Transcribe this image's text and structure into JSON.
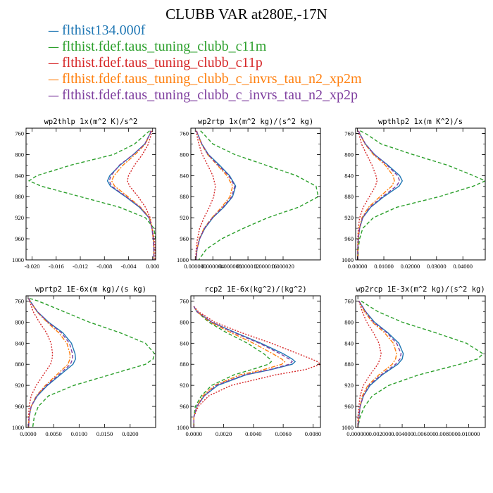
{
  "header": {
    "title": "CLUBB VAR at280E,-17N"
  },
  "chart_data": {
    "series_legend": [
      {
        "name": "flthist134.000f",
        "color": "#1f77b4",
        "dash": "solid"
      },
      {
        "name": "flthist.fdef.taus_tuning_clubb_c11m",
        "color": "#2ca02c",
        "dash": "dashed"
      },
      {
        "name": "flthist.fdef.taus_tuning_clubb_c11p",
        "color": "#d62728",
        "dash": "dotted"
      },
      {
        "name": "flthist.fdef.taus_tuning_clubb_c_invrs_tau_n2_xp2m",
        "color": "#ff7f0e",
        "dash": "dashdot"
      },
      {
        "name": "flthist.fdef.taus_tuning_clubb_c_invrs_tau_n2_xp2p",
        "color": "#7f3f9f",
        "dash": "dashed"
      }
    ],
    "plots": [
      {
        "title": "wp2thlp  1x(m^2 K)/s^2",
        "type": "line",
        "xlim": [
          -0.021,
          0.0005
        ],
        "ylim": [
          1000,
          750
        ],
        "xticks": [
          -0.02,
          -0.016,
          -0.012,
          -0.008,
          -0.004,
          0.0
        ],
        "xticklabels": [
          "-0.020",
          "-0.016",
          "-0.012",
          "-0.008",
          "-0.004",
          "0.000"
        ],
        "y": [
          755,
          760,
          780,
          800,
          820,
          840,
          850,
          860,
          880,
          900,
          920,
          940,
          960,
          980,
          1000
        ],
        "series": [
          {
            "values": [
              -0.0003,
              -0.0004,
              -0.0013,
              -0.0032,
              -0.0054,
              -0.0071,
              -0.0075,
              -0.007,
              -0.0045,
              -0.0022,
              -0.0006,
              -0.0001,
              0.0001,
              0.0002,
              0.0002
            ]
          },
          {
            "values": [
              -0.0005,
              -0.001,
              -0.003,
              -0.0065,
              -0.0135,
              -0.0192,
              -0.0205,
              -0.0185,
              -0.012,
              -0.0055,
              -0.0012,
              0.0002,
              0.0005,
              0.0006,
              0.0006
            ]
          },
          {
            "values": [
              -0.0001,
              -0.0002,
              -0.0007,
              -0.0017,
              -0.003,
              -0.004,
              -0.0042,
              -0.0038,
              -0.0024,
              -0.0012,
              -0.0004,
              -0.0001,
              0.0003,
              0.0004,
              0.0004
            ]
          },
          {
            "values": [
              -0.0003,
              -0.0004,
              -0.0012,
              -0.0029,
              -0.0049,
              -0.0064,
              -0.0068,
              -0.0063,
              -0.0041,
              -0.002,
              -0.0005,
              -0.0001,
              0.0001,
              0.0002,
              0.0002
            ]
          },
          {
            "values": [
              -0.0003,
              -0.0004,
              -0.0013,
              -0.0032,
              -0.0055,
              -0.0069,
              -0.0072,
              -0.0068,
              -0.0044,
              -0.0021,
              -0.0006,
              -0.0001,
              0.0001,
              0.0002,
              0.0002
            ]
          }
        ]
      },
      {
        "title": "wp2rtp  1x(m^2 kg)/(s^2 kg)",
        "type": "line",
        "xlim": [
          -1e-06,
          2.85e-05
        ],
        "ylim": [
          1000,
          750
        ],
        "xticks": [
          0.0,
          4e-06,
          8e-06,
          1.2e-05,
          1.6e-05,
          2e-05
        ],
        "xticklabels": [
          "0.000000",
          "0.000004",
          "0.000008",
          "0.000012",
          "0.000016",
          "0.000020"
        ],
        "y": [
          755,
          760,
          780,
          800,
          820,
          840,
          860,
          880,
          900,
          920,
          940,
          960,
          980,
          1000
        ],
        "series": [
          {
            "values": [
              3e-07,
              5e-07,
              1.5e-06,
              3e-06,
              5.5e-06,
              7.8e-06,
              9.2e-06,
              8.5e-06,
              6.5e-06,
              4e-06,
              2.2e-06,
              1e-06,
              4e-07,
              2e-07
            ]
          },
          {
            "values": [
              1.2e-06,
              1.8e-06,
              4e-06,
              9e-06,
              1.6e-05,
              2.3e-05,
              2.75e-05,
              2.8e-05,
              2.35e-05,
              1.65e-05,
              1.1e-05,
              6e-06,
              2.5e-06,
              8e-07
            ]
          },
          {
            "values": [
              2e-07,
              3e-07,
              8e-07,
              1.6e-06,
              2.8e-06,
              4e-06,
              4.6e-06,
              4.2e-06,
              3.2e-06,
              2e-06,
              1e-06,
              5e-07,
              2e-07,
              1e-07
            ]
          },
          {
            "values": [
              3e-07,
              5e-07,
              1.4e-06,
              2.8e-06,
              5e-06,
              7.2e-06,
              8.5e-06,
              7.9e-06,
              6e-06,
              3.8e-06,
              2e-06,
              9e-07,
              4e-07,
              2e-07
            ]
          },
          {
            "values": [
              3e-07,
              5e-07,
              1.5e-06,
              2.9e-06,
              5.2e-06,
              7.6e-06,
              9e-06,
              8.3e-06,
              6.3e-06,
              3.9e-06,
              2.1e-06,
              1e-06,
              4e-07,
              2e-07
            ]
          }
        ]
      },
      {
        "title": "wpthlp2  1x(m K^2)/s",
        "type": "line",
        "xlim": [
          -0.0007,
          0.0485
        ],
        "ylim": [
          1000,
          750
        ],
        "xticks": [
          0.0,
          0.01,
          0.02,
          0.03,
          0.04
        ],
        "xticklabels": [
          "0.00000",
          "0.01000",
          "0.02000",
          "0.03000",
          "0.04000"
        ],
        "y": [
          755,
          760,
          780,
          800,
          820,
          840,
          850,
          860,
          880,
          900,
          920,
          940,
          960,
          980,
          1000
        ],
        "series": [
          {
            "values": [
              0.0004,
              0.0008,
              0.003,
              0.0065,
              0.0115,
              0.016,
              0.017,
              0.0158,
              0.01,
              0.005,
              0.002,
              0.0008,
              0.0003,
              0.0001,
              0.0001
            ]
          },
          {
            "values": [
              0.001,
              0.003,
              0.009,
              0.021,
              0.034,
              0.044,
              0.0485,
              0.044,
              0.031,
              0.015,
              0.006,
              0.002,
              0.0008,
              0.0003,
              0.0002
            ]
          },
          {
            "values": [
              0.0003,
              0.0005,
              0.0015,
              0.0035,
              0.0055,
              0.007,
              0.0074,
              0.0068,
              0.0045,
              0.0022,
              0.0008,
              0.0003,
              0.0001,
              0.0001,
              0.0001
            ]
          },
          {
            "values": [
              0.0004,
              0.0008,
              0.0028,
              0.006,
              0.0105,
              0.0135,
              0.014,
              0.013,
              0.0085,
              0.0042,
              0.0017,
              0.0007,
              0.0003,
              0.0001,
              0.0001
            ]
          },
          {
            "values": [
              0.0004,
              0.0008,
              0.003,
              0.0064,
              0.0112,
              0.0152,
              0.016,
              0.0148,
              0.0095,
              0.0047,
              0.0019,
              0.0008,
              0.0003,
              0.0001,
              0.0001
            ]
          }
        ]
      },
      {
        "title": "wprtp2  1E-6x(m kg)/(s kg)",
        "type": "line",
        "xlim": [
          -0.0004,
          0.025
        ],
        "ylim": [
          1000,
          750
        ],
        "xticks": [
          0.0,
          0.005,
          0.01,
          0.015,
          0.02
        ],
        "xticklabels": [
          "0.0000",
          "0.0050",
          "0.0100",
          "0.0150",
          "0.0200"
        ],
        "y": [
          755,
          760,
          780,
          800,
          820,
          840,
          860,
          870,
          880,
          900,
          920,
          940,
          960,
          980,
          1000
        ],
        "series": [
          {
            "values": [
              0.0001,
              0.0004,
              0.0018,
              0.004,
              0.0068,
              0.0085,
              0.0092,
              0.0093,
              0.0088,
              0.0063,
              0.0038,
              0.0018,
              0.0006,
              0.0002,
              0.0001
            ]
          },
          {
            "values": [
              0.0003,
              0.002,
              0.007,
              0.012,
              0.018,
              0.023,
              0.0248,
              0.0245,
              0.023,
              0.016,
              0.009,
              0.004,
              0.002,
              0.0012,
              0.0009
            ]
          },
          {
            "values": [
              0.0001,
              0.0003,
              0.001,
              0.0022,
              0.0036,
              0.0045,
              0.0048,
              0.0047,
              0.0044,
              0.003,
              0.0016,
              0.0006,
              0.0002,
              0.0001,
              0.0001
            ]
          },
          {
            "values": [
              0.0001,
              0.0004,
              0.0017,
              0.0037,
              0.006,
              0.0076,
              0.0082,
              0.0082,
              0.0078,
              0.0056,
              0.0034,
              0.0016,
              0.0006,
              0.0002,
              0.0001
            ]
          },
          {
            "values": [
              0.0001,
              0.0004,
              0.0018,
              0.0039,
              0.0065,
              0.0081,
              0.0087,
              0.0087,
              0.0083,
              0.006,
              0.0036,
              0.0017,
              0.0006,
              0.0002,
              0.0001
            ]
          }
        ]
      },
      {
        "title": "rcp2  1E-6x(kg^2)/(kg^2)",
        "type": "line",
        "xlim": [
          -0.0002,
          0.0085
        ],
        "ylim": [
          1000,
          750
        ],
        "xticks": [
          0.0,
          0.002,
          0.004,
          0.006,
          0.008
        ],
        "xticklabels": [
          "0.0000",
          "0.0020",
          "0.0040",
          "0.0060",
          "0.0080"
        ],
        "y": [
          770,
          780,
          800,
          820,
          840,
          860,
          870,
          875,
          880,
          890,
          900,
          920,
          940,
          960,
          980,
          1000
        ],
        "series": [
          {
            "values": [
              0.0,
              0.0002,
              0.0012,
              0.0028,
              0.0045,
              0.006,
              0.0066,
              0.0068,
              0.0066,
              0.0052,
              0.0035,
              0.0016,
              0.0007,
              0.0002,
              0.0,
              0.0
            ]
          },
          {
            "values": [
              0.0,
              0.0002,
              0.001,
              0.0022,
              0.0036,
              0.0047,
              0.0051,
              0.0052,
              0.005,
              0.0039,
              0.0027,
              0.0012,
              0.0005,
              0.0001,
              0.0,
              0.0
            ]
          },
          {
            "values": [
              0.0,
              0.0003,
              0.0014,
              0.0032,
              0.0052,
              0.007,
              0.0079,
              0.0083,
              0.0085,
              0.0075,
              0.0055,
              0.0025,
              0.001,
              0.0003,
              0.0,
              0.0
            ]
          },
          {
            "values": [
              0.0,
              0.0002,
              0.0011,
              0.0025,
              0.004,
              0.0053,
              0.0059,
              0.0061,
              0.0059,
              0.0047,
              0.0031,
              0.0014,
              0.0006,
              0.0002,
              0.0,
              0.0
            ]
          },
          {
            "values": [
              0.0,
              0.0002,
              0.0012,
              0.0027,
              0.0044,
              0.0058,
              0.0064,
              0.0066,
              0.0064,
              0.0051,
              0.0034,
              0.0015,
              0.0007,
              0.0002,
              0.0,
              0.0
            ]
          }
        ]
      },
      {
        "title": "wp2rcp  1E-3x(m^2 kg)/(s^2 kg)",
        "type": "line",
        "xlim": [
          -0.0002,
          0.0115
        ],
        "ylim": [
          1000,
          750
        ],
        "xticks": [
          0.0,
          0.002,
          0.004,
          0.006,
          0.008,
          0.01
        ],
        "xticklabels": [
          "0.000000",
          "0.002000",
          "0.004000",
          "0.006000",
          "0.008000",
          "0.010000"
        ],
        "y": [
          760,
          780,
          800,
          820,
          840,
          860,
          870,
          880,
          900,
          920,
          940,
          960,
          980,
          1000
        ],
        "series": [
          {
            "values": [
              0.0001,
              0.0007,
              0.0015,
              0.0027,
              0.0037,
              0.0041,
              0.004,
              0.0036,
              0.0022,
              0.0011,
              0.0005,
              0.0002,
              0.0001,
              0.0
            ]
          },
          {
            "values": [
              0.0003,
              0.0018,
              0.004,
              0.007,
              0.0098,
              0.0113,
              0.0108,
              0.0092,
              0.0055,
              0.0028,
              0.0013,
              0.0006,
              0.0002,
              0.0
            ]
          },
          {
            "values": [
              0.0001,
              0.0004,
              0.0008,
              0.0014,
              0.0019,
              0.0021,
              0.002,
              0.0018,
              0.0011,
              0.0005,
              0.0002,
              0.0001,
              0.0,
              0.0
            ]
          },
          {
            "values": [
              0.0001,
              0.0006,
              0.0013,
              0.0024,
              0.0032,
              0.0035,
              0.0034,
              0.0031,
              0.0019,
              0.0009,
              0.0004,
              0.0002,
              0.0001,
              0.0
            ]
          },
          {
            "values": [
              0.0001,
              0.0007,
              0.0014,
              0.0026,
              0.0035,
              0.0039,
              0.0038,
              0.0034,
              0.0021,
              0.001,
              0.0005,
              0.0002,
              0.0001,
              0.0
            ]
          }
        ]
      }
    ],
    "yticks": [
      760,
      800,
      840,
      880,
      920,
      960,
      1000
    ]
  }
}
